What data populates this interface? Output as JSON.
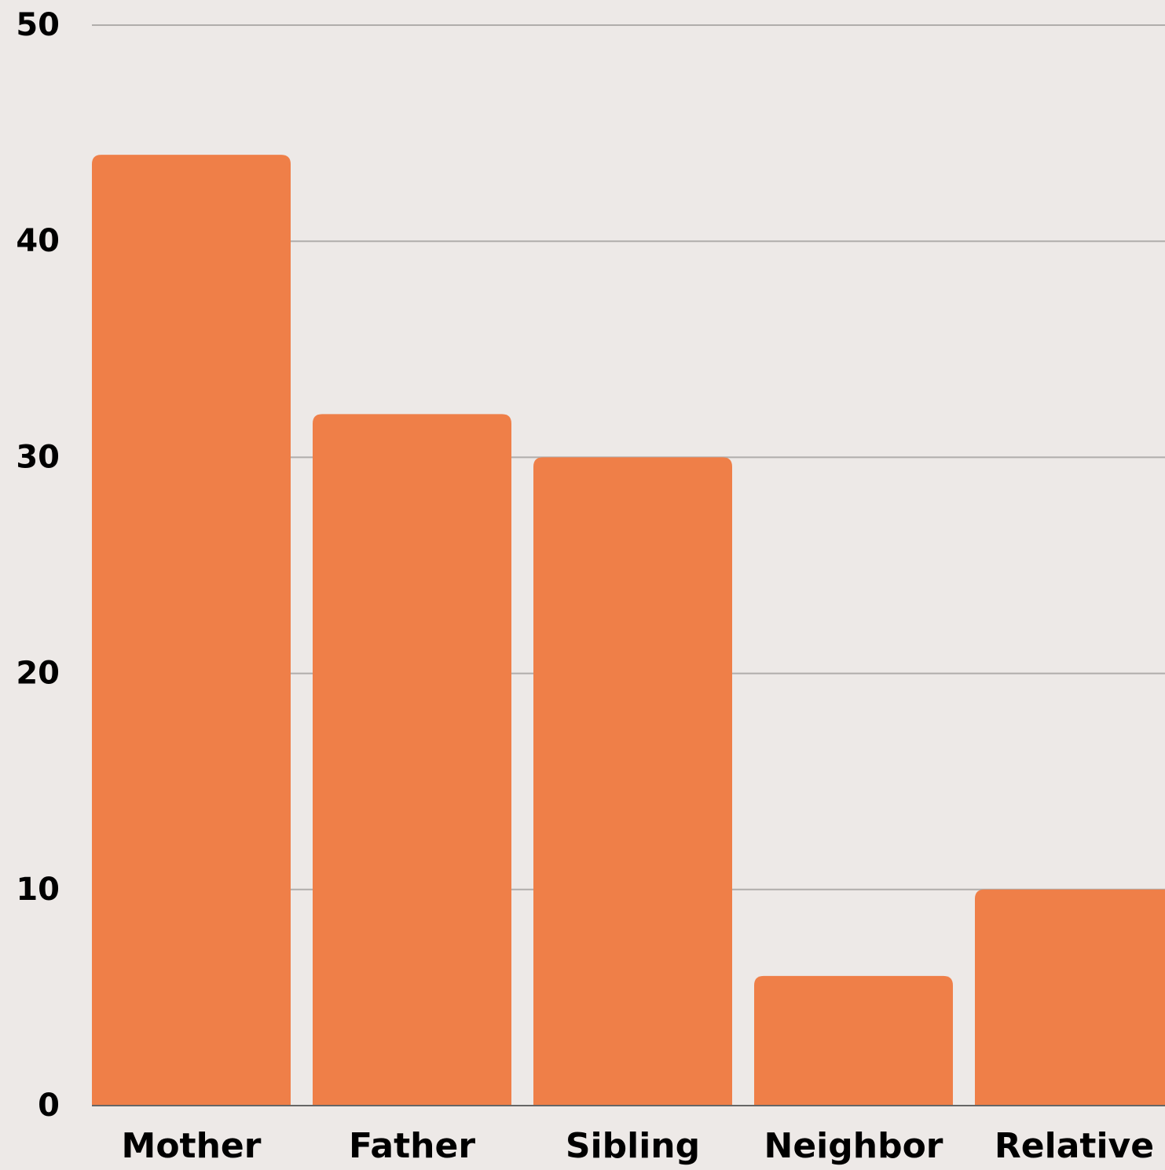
{
  "chart_data": {
    "type": "bar",
    "categories": [
      "Mother",
      "Father",
      "Sibling",
      "Neighbor",
      "Relative"
    ],
    "values": [
      44,
      32,
      30,
      6,
      10
    ],
    "color": "#ef7f48",
    "ylim": [
      0,
      50
    ],
    "yticks": [
      0,
      10,
      20,
      30,
      40,
      50
    ],
    "grid": true
  }
}
